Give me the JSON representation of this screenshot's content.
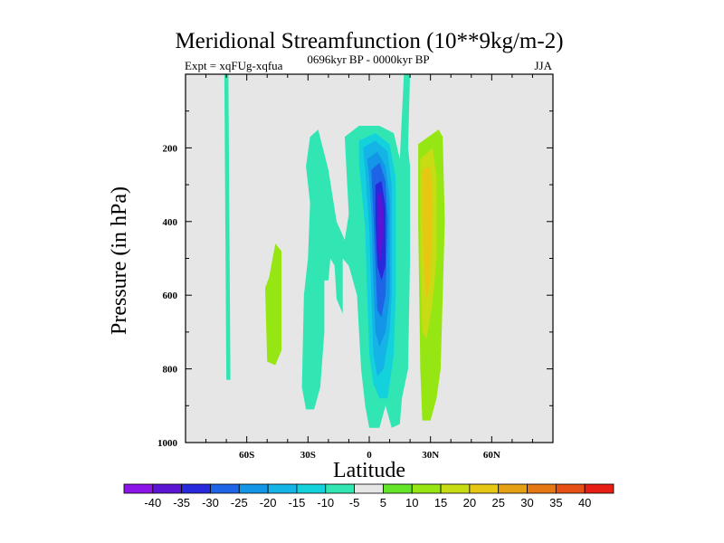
{
  "chart_data": {
    "type": "contour",
    "title": "Meridional Streamfunction (10**9kg/m-2)",
    "subtitle_left": "Expt = xqFUg-xqfua",
    "subtitle_center": "0696kyr BP - 0000kyr BP",
    "subtitle_right": "JJA",
    "xlabel": "Latitude",
    "ylabel": "Pressure (in hPa)",
    "xlim": [
      -90,
      90
    ],
    "ylim": [
      1000,
      0
    ],
    "x_ticks": [
      {
        "value": -60,
        "label": "60S"
      },
      {
        "value": -30,
        "label": "30S"
      },
      {
        "value": 0,
        "label": "0"
      },
      {
        "value": 30,
        "label": "30N"
      },
      {
        "value": 60,
        "label": "60N"
      }
    ],
    "y_ticks": [
      {
        "value": 200,
        "label": "200"
      },
      {
        "value": 400,
        "label": "400"
      },
      {
        "value": 600,
        "label": "600"
      },
      {
        "value": 800,
        "label": "800"
      },
      {
        "value": 1000,
        "label": "1000"
      }
    ],
    "background_color": "#e6e6e6",
    "colorbar": {
      "labels": [
        "-40",
        "-35",
        "-30",
        "-25",
        "-20",
        "-15",
        "-10",
        "-5",
        "5",
        "10",
        "15",
        "20",
        "25",
        "30",
        "35",
        "40"
      ],
      "colors": [
        "#8c14e6",
        "#5a14d2",
        "#2828dc",
        "#1e64e6",
        "#1496e6",
        "#14b4e6",
        "#14d2dc",
        "#32e6b4",
        "#e6e6e6",
        "#64e628",
        "#96e614",
        "#c8dc14",
        "#e6c814",
        "#e6a014",
        "#e67814",
        "#e65014",
        "#e61e14"
      ]
    },
    "regions": [
      {
        "level": -5,
        "points": [
          [
            -69,
            0
          ],
          [
            -68,
            830
          ],
          [
            -70,
            830
          ],
          [
            -71,
            0
          ]
        ]
      },
      {
        "level": 10,
        "points": [
          [
            -46,
            460
          ],
          [
            -43,
            480
          ],
          [
            -43,
            750
          ],
          [
            -46,
            790
          ],
          [
            -50,
            780
          ],
          [
            -51,
            580
          ],
          [
            -49,
            550
          ]
        ]
      },
      {
        "level": -5,
        "points": [
          [
            -29,
            170
          ],
          [
            -25,
            150
          ],
          [
            -20,
            260
          ],
          [
            -16,
            400
          ],
          [
            -12,
            450
          ],
          [
            -10,
            380
          ],
          [
            -12,
            170
          ],
          [
            -5,
            140
          ],
          [
            5,
            140
          ],
          [
            12,
            160
          ],
          [
            15,
            230
          ],
          [
            17,
            0
          ],
          [
            20,
            0
          ],
          [
            19,
            200
          ],
          [
            20,
            250
          ],
          [
            20,
            500
          ],
          [
            19,
            800
          ],
          [
            16,
            880
          ],
          [
            15,
            950
          ],
          [
            11,
            960
          ],
          [
            8,
            900
          ],
          [
            5,
            960
          ],
          [
            0,
            960
          ],
          [
            -2,
            900
          ],
          [
            -4,
            800
          ],
          [
            -6,
            600
          ],
          [
            -10,
            520
          ],
          [
            -13,
            500
          ],
          [
            -13,
            650
          ],
          [
            -16,
            610
          ],
          [
            -17,
            520
          ],
          [
            -19,
            500
          ],
          [
            -20,
            560
          ],
          [
            -22,
            560
          ],
          [
            -22,
            700
          ],
          [
            -24,
            850
          ],
          [
            -27,
            910
          ],
          [
            -31,
            910
          ],
          [
            -33,
            850
          ],
          [
            -32,
            600
          ],
          [
            -30,
            500
          ],
          [
            -29,
            350
          ],
          [
            -31,
            250
          ]
        ]
      },
      {
        "level": -10,
        "points": [
          [
            -5,
            180
          ],
          [
            3,
            160
          ],
          [
            10,
            190
          ],
          [
            13,
            280
          ],
          [
            13,
            600
          ],
          [
            12,
            760
          ],
          [
            9,
            880
          ],
          [
            5,
            880
          ],
          [
            2,
            840
          ],
          [
            0,
            760
          ],
          [
            -1,
            600
          ],
          [
            -2,
            420
          ],
          [
            -5,
            240
          ]
        ]
      },
      {
        "level": -15,
        "points": [
          [
            -3,
            200
          ],
          [
            3,
            180
          ],
          [
            9,
            210
          ],
          [
            11,
            300
          ],
          [
            11,
            600
          ],
          [
            10,
            700
          ],
          [
            7,
            800
          ],
          [
            4,
            820
          ],
          [
            2,
            760
          ],
          [
            1,
            600
          ],
          [
            0,
            420
          ],
          [
            -2,
            260
          ]
        ]
      },
      {
        "level": -20,
        "points": [
          [
            -1,
            230
          ],
          [
            4,
            210
          ],
          [
            8,
            250
          ],
          [
            10,
            340
          ],
          [
            10,
            600
          ],
          [
            8,
            700
          ],
          [
            5,
            740
          ],
          [
            3,
            700
          ],
          [
            2,
            560
          ],
          [
            1,
            380
          ],
          [
            0,
            280
          ]
        ]
      },
      {
        "level": -25,
        "points": [
          [
            1,
            260
          ],
          [
            5,
            240
          ],
          [
            8,
            290
          ],
          [
            9,
            400
          ],
          [
            8,
            600
          ],
          [
            6,
            660
          ],
          [
            4,
            640
          ],
          [
            3,
            520
          ],
          [
            2,
            380
          ]
        ]
      },
      {
        "level": -30,
        "points": [
          [
            3,
            300
          ],
          [
            6,
            290
          ],
          [
            8,
            360
          ],
          [
            8,
            520
          ],
          [
            6,
            560
          ],
          [
            4,
            520
          ],
          [
            3,
            400
          ]
        ]
      },
      {
        "level": -35,
        "points": [
          [
            4,
            330
          ],
          [
            6,
            320
          ],
          [
            7,
            400
          ],
          [
            6,
            500
          ],
          [
            5,
            510
          ],
          [
            4,
            420
          ]
        ]
      },
      {
        "level": 10,
        "points": [
          [
            24,
            190
          ],
          [
            34,
            150
          ],
          [
            36,
            170
          ],
          [
            37,
            400
          ],
          [
            35,
            800
          ],
          [
            33,
            880
          ],
          [
            30,
            940
          ],
          [
            26,
            940
          ],
          [
            25,
            800
          ],
          [
            24,
            400
          ]
        ]
      },
      {
        "level": 15,
        "points": [
          [
            25,
            230
          ],
          [
            31,
            200
          ],
          [
            33,
            280
          ],
          [
            33,
            500
          ],
          [
            31,
            620
          ],
          [
            28,
            720
          ],
          [
            26,
            700
          ],
          [
            25,
            500
          ]
        ]
      },
      {
        "level": 20,
        "points": [
          [
            26,
            260
          ],
          [
            30,
            250
          ],
          [
            31,
            360
          ],
          [
            30,
            560
          ],
          [
            28,
            620
          ],
          [
            27,
            560
          ],
          [
            26,
            400
          ]
        ]
      }
    ]
  }
}
